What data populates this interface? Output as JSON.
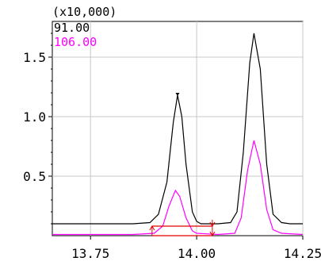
{
  "chart_data": {
    "type": "line",
    "title": "",
    "xlabel": "",
    "ylabel": "",
    "y_multiplier_label": "(x10,000)",
    "xlim": [
      13.66,
      14.25
    ],
    "ylim": [
      0,
      1.8
    ],
    "grid": true,
    "x_ticks": [
      {
        "value": 13.75,
        "label": "13.75"
      },
      {
        "value": 14.0,
        "label": "14.00"
      },
      {
        "value": 14.25,
        "label": "14.25"
      }
    ],
    "y_ticks": [
      {
        "value": 0.5,
        "label": "0.5"
      },
      {
        "value": 1.0,
        "label": "1.0"
      },
      {
        "value": 1.5,
        "label": "1.5"
      }
    ],
    "legend": {
      "placement": "top-left"
    },
    "series": [
      {
        "name": "91.00",
        "color": "#000000",
        "x": [
          13.66,
          13.7,
          13.75,
          13.8,
          13.85,
          13.89,
          13.91,
          13.93,
          13.945,
          13.955,
          13.965,
          13.975,
          13.99,
          14.0,
          14.01,
          14.03,
          14.05,
          14.08,
          14.095,
          14.11,
          14.125,
          14.135,
          14.15,
          14.165,
          14.18,
          14.2,
          14.22,
          14.25
        ],
        "y": [
          0.1,
          0.1,
          0.1,
          0.1,
          0.1,
          0.11,
          0.18,
          0.45,
          0.95,
          1.18,
          1.0,
          0.6,
          0.2,
          0.12,
          0.1,
          0.1,
          0.1,
          0.11,
          0.2,
          0.7,
          1.45,
          1.7,
          1.4,
          0.6,
          0.18,
          0.11,
          0.1,
          0.1
        ]
      },
      {
        "name": "106.00",
        "color": "#ff00ff",
        "x": [
          13.66,
          13.75,
          13.85,
          13.9,
          13.92,
          13.935,
          13.95,
          13.96,
          13.975,
          13.99,
          14.0,
          14.05,
          14.09,
          14.105,
          14.12,
          14.135,
          14.15,
          14.165,
          14.18,
          14.2,
          14.25
        ],
        "y": [
          0.01,
          0.01,
          0.01,
          0.02,
          0.08,
          0.25,
          0.38,
          0.33,
          0.15,
          0.04,
          0.02,
          0.01,
          0.02,
          0.15,
          0.55,
          0.8,
          0.6,
          0.22,
          0.05,
          0.02,
          0.01
        ]
      }
    ]
  }
}
